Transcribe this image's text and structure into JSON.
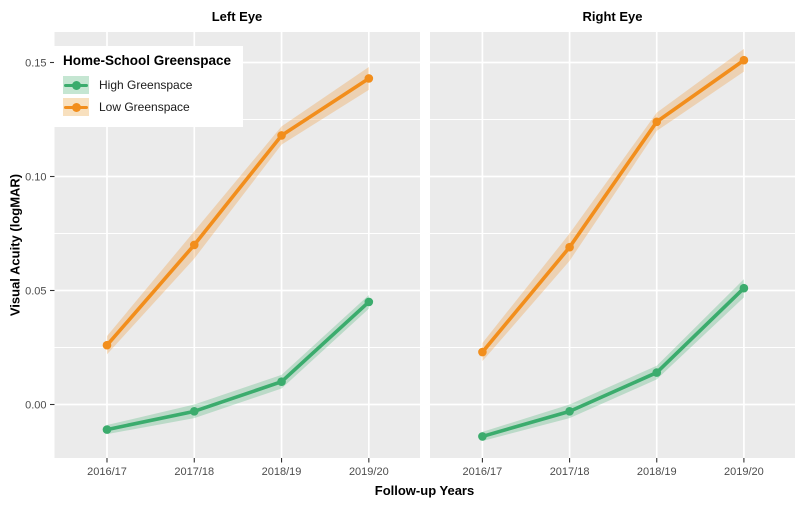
{
  "legend": {
    "title": "Home-School Greenspace",
    "items": [
      {
        "label": "High Greenspace",
        "color": "#3BAC6D",
        "fill": "#C5E6D2"
      },
      {
        "label": "Low Greenspace",
        "color": "#F28E1C",
        "fill": "#F8E0BE"
      }
    ]
  },
  "chart_data": {
    "type": "line",
    "title": "",
    "xlabel": "Follow-up Years",
    "ylabel": "Visual Acuity (logMAR)",
    "categories": [
      "2016/17",
      "2017/18",
      "2018/19",
      "2019/20"
    ],
    "y_ticks": [
      0.0,
      0.05,
      0.1,
      0.15
    ],
    "y_tick_labels": [
      "0.00",
      "0.05",
      "0.10",
      "0.15"
    ],
    "y_minor_ticks": [
      0.025,
      0.075,
      0.125
    ],
    "ylim": [
      -0.0235,
      0.1635
    ],
    "grid": true,
    "legend_position": "top-left-inside",
    "colors": {
      "panel_background": "#EBEBEB",
      "gridline": "#FFFFFF",
      "tick_mark": "#333333",
      "tick_label": "#4D4D4D",
      "high_greenspace": "#3BAC6D",
      "low_greenspace": "#F28E1C"
    },
    "panels": [
      {
        "title": "Left Eye",
        "series": [
          {
            "name": "High Greenspace",
            "color": "#3BAC6D",
            "values": [
              -0.011,
              -0.003,
              0.01,
              0.045
            ],
            "lower": [
              -0.013,
              -0.006,
              0.007,
              0.042
            ],
            "upper": [
              -0.009,
              0.0,
              0.013,
              0.048
            ]
          },
          {
            "name": "Low Greenspace",
            "color": "#F28E1C",
            "values": [
              0.026,
              0.07,
              0.118,
              0.143
            ],
            "lower": [
              0.022,
              0.064,
              0.114,
              0.138
            ],
            "upper": [
              0.03,
              0.076,
              0.122,
              0.148
            ]
          }
        ]
      },
      {
        "title": "Right Eye",
        "series": [
          {
            "name": "High Greenspace",
            "color": "#3BAC6D",
            "values": [
              -0.014,
              -0.003,
              0.014,
              0.051
            ],
            "lower": [
              -0.016,
              -0.006,
              0.011,
              0.047
            ],
            "upper": [
              -0.012,
              0.0,
              0.017,
              0.055
            ]
          },
          {
            "name": "Low Greenspace",
            "color": "#F28E1C",
            "values": [
              0.023,
              0.069,
              0.124,
              0.151
            ],
            "lower": [
              0.019,
              0.063,
              0.12,
              0.146
            ],
            "upper": [
              0.027,
              0.075,
              0.128,
              0.156
            ]
          }
        ]
      }
    ]
  }
}
